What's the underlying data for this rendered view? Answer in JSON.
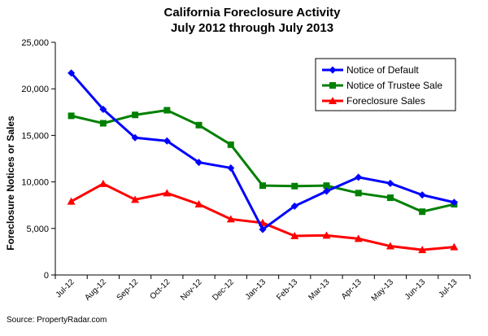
{
  "chart_data": {
    "type": "line",
    "title": [
      "California Foreclosure Activity",
      "July 2012 through July 2013"
    ],
    "xlabel": "",
    "ylabel": "Foreclosure Notices or Sales",
    "ylim": [
      0,
      25000
    ],
    "yticks": [
      0,
      5000,
      10000,
      15000,
      20000,
      25000
    ],
    "ytick_labels": [
      "0",
      "5,000",
      "10,000",
      "15,000",
      "20,000",
      "25,000"
    ],
    "categories": [
      "Jul-12",
      "Aug-12",
      "Sep-12",
      "Oct-12",
      "Nov-12",
      "Dec-12",
      "Jan-13",
      "Feb-13",
      "Mar-13",
      "Apr-13",
      "May-13",
      "Jun-13",
      "Jul-13"
    ],
    "grid": false,
    "legend_position": "top-right",
    "series": [
      {
        "name": "Notice of Default",
        "color": "#0000ff",
        "marker": "diamond",
        "values": [
          21700,
          17800,
          14750,
          14400,
          12100,
          11500,
          4900,
          7400,
          9000,
          10500,
          9850,
          8600,
          7800
        ]
      },
      {
        "name": "Notice of Trustee Sale",
        "color": "#008000",
        "marker": "square",
        "values": [
          17100,
          16300,
          17200,
          17700,
          16100,
          14000,
          9600,
          9550,
          9600,
          8800,
          8300,
          6800,
          7600
        ]
      },
      {
        "name": "Foreclosure Sales",
        "color": "#ff0000",
        "marker": "triangle",
        "values": [
          7900,
          9800,
          8100,
          8800,
          7600,
          6000,
          5600,
          4200,
          4250,
          3900,
          3100,
          2700,
          3000
        ]
      }
    ]
  },
  "footer": {
    "source": "Source: PropertyRadar.com"
  }
}
